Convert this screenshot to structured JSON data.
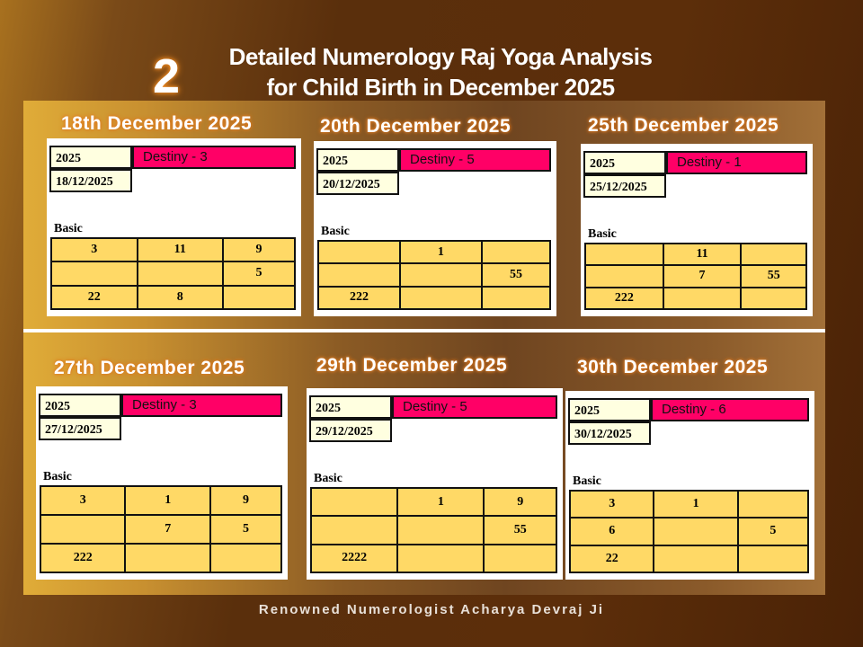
{
  "header": {
    "number": "2",
    "title_line1": "Detailed Numerology Raj Yoga Analysis",
    "title_line2": "for Child Birth in December 2025"
  },
  "labels": {
    "basic": "Basic"
  },
  "colors": {
    "destiny": "#ff0066",
    "grid": "#ffd966",
    "year": "#ffffe0"
  },
  "cards": [
    {
      "title": "18th December 2025",
      "year": "2025",
      "date": "18/12/2025",
      "destiny": "Destiny -   3",
      "grid": [
        [
          "3",
          "11",
          "9"
        ],
        [
          "",
          "",
          "5"
        ],
        [
          "22",
          "8",
          ""
        ]
      ]
    },
    {
      "title": "20th December 2025",
      "year": "2025",
      "date": "20/12/2025",
      "destiny": "Destiny -   5",
      "grid": [
        [
          "",
          "1",
          ""
        ],
        [
          "",
          "",
          "55"
        ],
        [
          "222",
          "",
          ""
        ]
      ]
    },
    {
      "title": "25th December 2025",
      "year": "2025",
      "date": "25/12/2025",
      "destiny": "Destiny -   1",
      "grid": [
        [
          "",
          "11",
          ""
        ],
        [
          "",
          "7",
          "55"
        ],
        [
          "222",
          "",
          ""
        ]
      ]
    },
    {
      "title": "27th December 2025",
      "year": "2025",
      "date": "27/12/2025",
      "destiny": "Destiny -   3",
      "grid": [
        [
          "3",
          "1",
          "9"
        ],
        [
          "",
          "7",
          "5"
        ],
        [
          "222",
          "",
          ""
        ]
      ]
    },
    {
      "title": "29th December 2025",
      "year": "2025",
      "date": "29/12/2025",
      "destiny": "Destiny -   5",
      "grid": [
        [
          "",
          "1",
          "9"
        ],
        [
          "",
          "",
          "55"
        ],
        [
          "2222",
          "",
          ""
        ]
      ]
    },
    {
      "title": "30th December 2025",
      "year": "2025",
      "date": "30/12/2025",
      "destiny": "Destiny -   6",
      "grid": [
        [
          "3",
          "1",
          ""
        ],
        [
          "6",
          "",
          "5"
        ],
        [
          "22",
          "",
          ""
        ]
      ]
    }
  ],
  "footer": "Renowned Numerologist Acharya Devraj Ji"
}
